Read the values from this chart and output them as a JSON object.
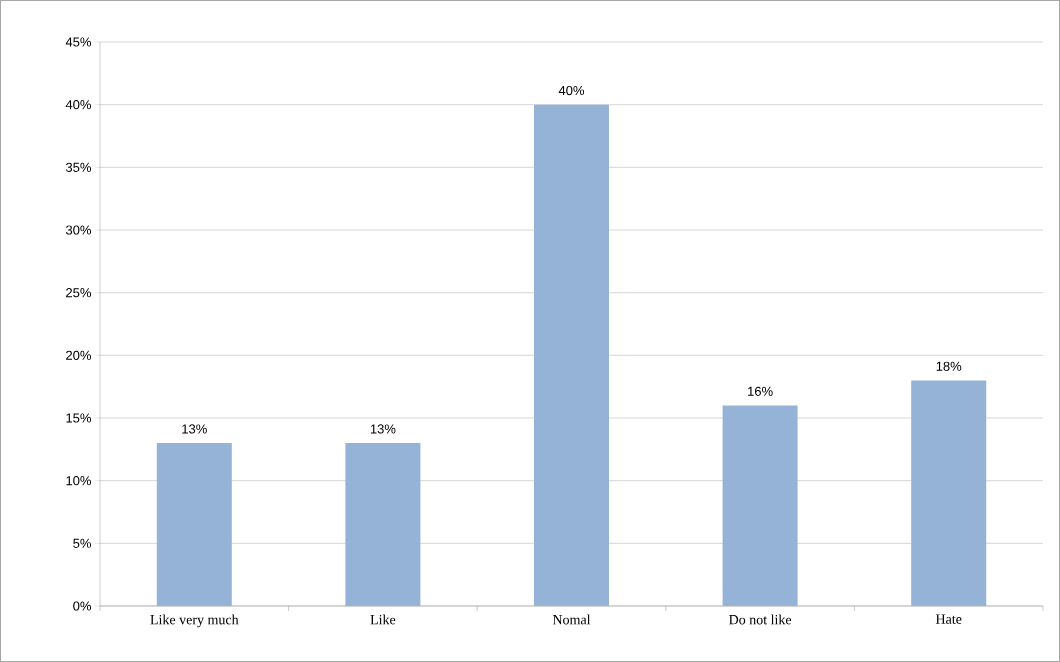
{
  "chart_data": {
    "type": "bar",
    "categories": [
      "Like very much",
      "Like",
      "Nomal",
      "Do not like",
      "Hate"
    ],
    "values": [
      13,
      13,
      40,
      16,
      18
    ],
    "value_labels": [
      "13%",
      "13%",
      "40%",
      "16%",
      "18%"
    ],
    "color": "#95b3d7",
    "ylim": [
      0,
      45
    ],
    "yticks": [
      {
        "value": 0,
        "label": "0%"
      },
      {
        "value": 5,
        "label": "5%"
      },
      {
        "value": 10,
        "label": "10%"
      },
      {
        "value": 15,
        "label": "15%"
      },
      {
        "value": 20,
        "label": "20%"
      },
      {
        "value": 25,
        "label": "25%"
      },
      {
        "value": 30,
        "label": "30%"
      },
      {
        "value": 35,
        "label": "35%"
      },
      {
        "value": 40,
        "label": "40%"
      },
      {
        "value": 45,
        "label": "45%"
      }
    ],
    "grid": "y"
  }
}
